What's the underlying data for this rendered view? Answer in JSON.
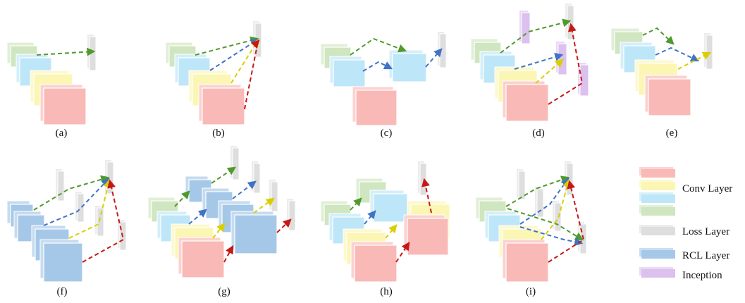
{
  "colors": {
    "conv_red": "#f9b9b6",
    "conv_yellow": "#fbf6b3",
    "conv_blue": "#bde6f8",
    "conv_green": "#cfe6c0",
    "loss": "#dedede",
    "rcl": "#a6c8e8",
    "inception": "#dcc0ee",
    "arrow_green": "#4f9a2c",
    "arrow_blue": "#3f73c4",
    "arrow_yellow": "#d9cf00",
    "arrow_red": "#c71818"
  },
  "panels": [
    {
      "caption": "(a)"
    },
    {
      "caption": "(b)"
    },
    {
      "caption": "(c)"
    },
    {
      "caption": "(d)"
    },
    {
      "caption": "(e)"
    },
    {
      "caption": "(f)"
    },
    {
      "caption": "(g)"
    },
    {
      "caption": "(h)"
    },
    {
      "caption": "(i)"
    }
  ],
  "legend": {
    "conv_layer": "Conv Layer",
    "loss_layer": "Loss Layer",
    "rcl_layer": "RCL Layer",
    "inception": "Inception"
  }
}
